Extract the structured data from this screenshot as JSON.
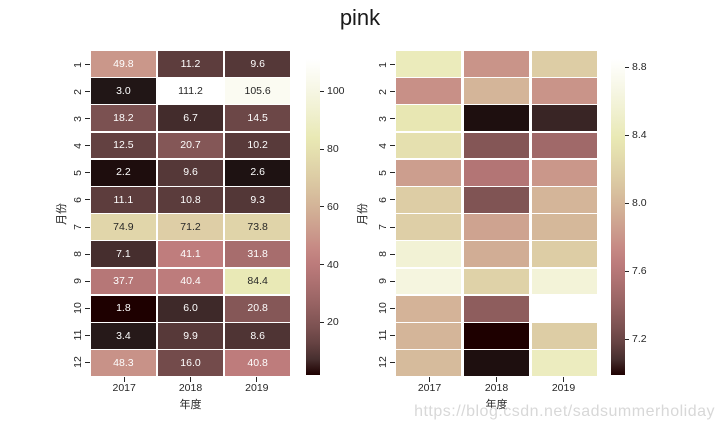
{
  "figure": {
    "title": "pink",
    "watermark": "https://blog.csdn.net/sadsummerholiday"
  },
  "style": {
    "background": "#ffffff",
    "colormap": "pink",
    "annotation_text_dark": "#262626",
    "annotation_text_light": "#ffffff",
    "tick_color": "#262626",
    "title_color": "#1a1a1a",
    "watermark_color": "#d8d8d8"
  },
  "chart_data": [
    {
      "type": "heatmap",
      "name": "annotated-heatmap",
      "colormap": "pink",
      "xlabel": "年度",
      "ylabel": "月份",
      "x_ticks": [
        "2017",
        "2018",
        "2019"
      ],
      "y_ticks": [
        "1",
        "2",
        "3",
        "4",
        "5",
        "6",
        "7",
        "8",
        "9",
        "10",
        "11",
        "12"
      ],
      "values": [
        [
          49.8,
          11.2,
          9.6
        ],
        [
          3.0,
          111.2,
          105.6
        ],
        [
          18.2,
          6.7,
          14.5
        ],
        [
          12.5,
          20.7,
          10.2
        ],
        [
          2.2,
          9.6,
          2.6
        ],
        [
          11.1,
          10.8,
          9.3
        ],
        [
          74.9,
          71.2,
          73.8
        ],
        [
          7.1,
          41.1,
          31.8
        ],
        [
          37.7,
          40.4,
          84.4
        ],
        [
          1.8,
          6.0,
          20.8
        ],
        [
          3.4,
          9.9,
          8.6
        ],
        [
          48.3,
          16.0,
          40.8
        ]
      ],
      "vmin": 1.8,
      "vmax": 111.2,
      "annotated": true,
      "annotation_format": "1dp",
      "colorbar": {
        "ticks": [
          20,
          40,
          60,
          80,
          100
        ],
        "labels": [
          "20",
          "40",
          "60",
          "80",
          "100"
        ]
      }
    },
    {
      "type": "heatmap",
      "name": "plain-heatmap",
      "colormap": "pink",
      "xlabel": "年度",
      "ylabel": "月份",
      "x_ticks": [
        "2017",
        "2018",
        "2019"
      ],
      "y_ticks": [
        "1",
        "2",
        "3",
        "4",
        "5",
        "6",
        "7",
        "8",
        "9",
        "10",
        "11",
        "12"
      ],
      "values": [
        [
          8.42,
          7.79,
          8.16
        ],
        [
          7.77,
          7.99,
          7.79
        ],
        [
          8.37,
          7.0,
          7.05
        ],
        [
          8.31,
          7.31,
          7.46
        ],
        [
          7.85,
          7.58,
          7.81
        ],
        [
          8.16,
          7.29,
          7.99
        ],
        [
          8.18,
          7.88,
          8.01
        ],
        [
          8.57,
          7.94,
          8.16
        ],
        [
          8.63,
          8.2,
          8.59
        ],
        [
          7.98,
          7.36,
          8.85
        ],
        [
          7.99,
          6.99,
          8.16
        ],
        [
          8.03,
          7.0,
          8.44
        ]
      ],
      "vmin": 6.99,
      "vmax": 8.85,
      "annotated": false,
      "colorbar": {
        "ticks": [
          7.2,
          7.6,
          8.0,
          8.4,
          8.8
        ],
        "labels": [
          "7.2",
          "7.6",
          "8.0",
          "8.4",
          "8.8"
        ]
      }
    }
  ]
}
